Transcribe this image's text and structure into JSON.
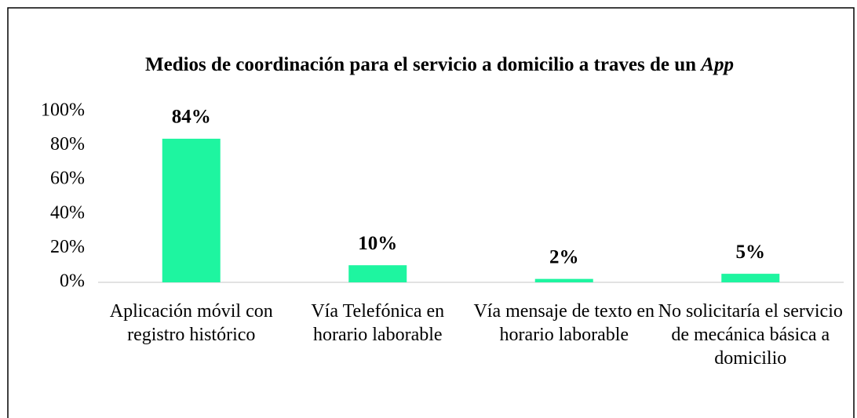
{
  "chart_data": {
    "type": "bar",
    "title": "Medios de coordinación para el servicio a domicilio a traves de un",
    "title_italic": "App",
    "categories": [
      "Aplicación móvil con registro histórico",
      "Vía Telefónica en horario laborable",
      "Vía mensaje de texto en horario laborable",
      "No solicitaría el servicio de mecánica básica a domicilio"
    ],
    "values": [
      84,
      10,
      2,
      5
    ],
    "value_labels": [
      "84%",
      "10%",
      "2%",
      "5%"
    ],
    "color": "#1ef5a0",
    "ylim": [
      0,
      100
    ],
    "yticks": [
      {
        "value": 0,
        "label": "0%"
      },
      {
        "value": 20,
        "label": "20%"
      },
      {
        "value": 40,
        "label": "40%"
      },
      {
        "value": 60,
        "label": "60%"
      },
      {
        "value": 80,
        "label": "80%"
      },
      {
        "value": 100,
        "label": "100%"
      }
    ],
    "grid": false
  }
}
